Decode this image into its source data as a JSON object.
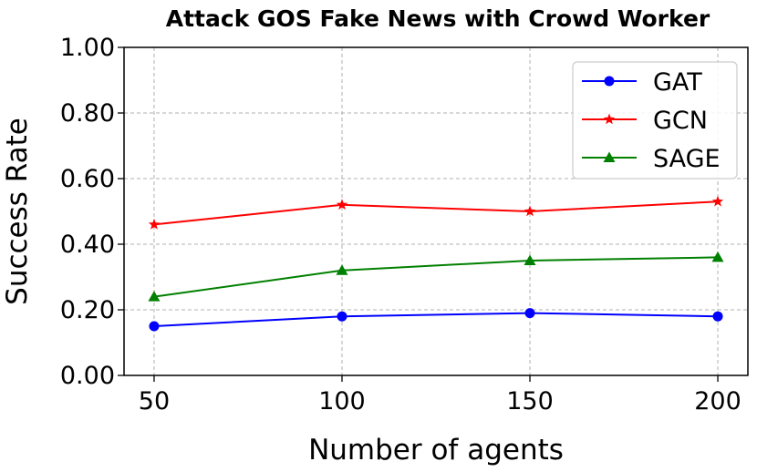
{
  "chart_data": {
    "type": "line",
    "title": "Attack GOS Fake News with Crowd Worker",
    "xlabel": "Number of agents",
    "ylabel": "Success Rate",
    "x": [
      50,
      100,
      150,
      200
    ],
    "x_tick_labels": [
      "50",
      "100",
      "150",
      "200"
    ],
    "xlim": [
      42,
      208
    ],
    "ylim": [
      0,
      1
    ],
    "y_ticks": [
      0,
      0.2,
      0.4,
      0.6,
      0.8,
      1.0
    ],
    "y_tick_labels": [
      "0.00",
      "0.20",
      "0.40",
      "0.60",
      "0.80",
      "1.00"
    ],
    "grid": true,
    "legend_position": "top-right",
    "series": [
      {
        "name": "GAT",
        "color": "#0000ff",
        "marker": "circle",
        "values": [
          0.15,
          0.18,
          0.19,
          0.18
        ]
      },
      {
        "name": "GCN",
        "color": "#ff0000",
        "marker": "star",
        "values": [
          0.46,
          0.52,
          0.5,
          0.53
        ]
      },
      {
        "name": "SAGE",
        "color": "#008000",
        "marker": "triangle",
        "values": [
          0.24,
          0.32,
          0.35,
          0.36
        ]
      }
    ]
  }
}
